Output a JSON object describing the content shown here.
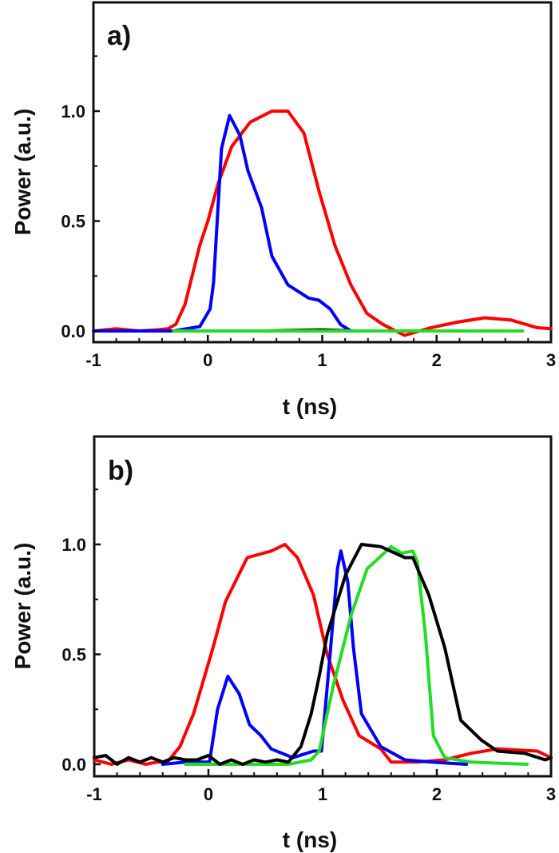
{
  "chart_data": [
    {
      "type": "line",
      "panel_label": "a)",
      "xlabel": "t (ns)",
      "ylabel": "Power (a.u.)",
      "xlim": [
        -1,
        3
      ],
      "ylim": [
        -0.05,
        1.5
      ],
      "xticks": [
        -1,
        0,
        1,
        2,
        3
      ],
      "xtick_labels": [
        "-1",
        "0",
        "1",
        "2",
        "3"
      ],
      "yticks": [
        0.0,
        0.5,
        1.0
      ],
      "ytick_labels": [
        "0.0",
        "0.5",
        "1.0"
      ],
      "grid": false,
      "series": [
        {
          "name": "black",
          "color": "#000000",
          "x": [
            -1,
            -0.5,
            0,
            0.5,
            1.0,
            1.3
          ],
          "y": [
            0.0,
            0.0,
            0.0,
            0.0,
            0.005,
            0.0
          ]
        },
        {
          "name": "red",
          "color": "#ff0000",
          "x": [
            -1,
            -0.8,
            -0.6,
            -0.45,
            -0.35,
            -0.28,
            -0.2,
            -0.07,
            0.0,
            0.09,
            0.21,
            0.37,
            0.56,
            0.7,
            0.84,
            0.97,
            1.11,
            1.25,
            1.39,
            1.53,
            1.72,
            1.95,
            2.18,
            2.42,
            2.65,
            2.88,
            3.0
          ],
          "y": [
            0.0,
            0.01,
            0.0,
            0.005,
            0.01,
            0.03,
            0.12,
            0.39,
            0.5,
            0.67,
            0.84,
            0.95,
            1.0,
            1.0,
            0.9,
            0.64,
            0.39,
            0.21,
            0.08,
            0.03,
            -0.02,
            0.015,
            0.04,
            0.06,
            0.05,
            0.015,
            0.01
          ]
        },
        {
          "name": "blue",
          "color": "#0000ff",
          "x": [
            -1,
            -0.6,
            -0.3,
            -0.07,
            0.02,
            0.05,
            0.12,
            0.19,
            0.28,
            0.35,
            0.47,
            0.56,
            0.7,
            0.88,
            0.97,
            1.07,
            1.16,
            1.25,
            1.6,
            2.0
          ],
          "y": [
            0.0,
            0.0,
            0.0,
            0.02,
            0.1,
            0.22,
            0.83,
            0.98,
            0.89,
            0.73,
            0.56,
            0.34,
            0.21,
            0.15,
            0.14,
            0.1,
            0.03,
            0.0,
            0.0,
            0.0
          ]
        },
        {
          "name": "green",
          "color": "#22dd22",
          "x": [
            -0.3,
            0.5,
            1.0,
            1.5,
            2.0,
            2.75
          ],
          "y": [
            0.0,
            0.0,
            0.0,
            0.0,
            0.0,
            0.0
          ]
        }
      ]
    },
    {
      "type": "line",
      "panel_label": "b)",
      "xlabel": "t (ns)",
      "ylabel": "Power (a.u.)",
      "xlim": [
        -1,
        3
      ],
      "ylim": [
        -0.05,
        1.5
      ],
      "xticks": [
        -1,
        0,
        1,
        2,
        3
      ],
      "xtick_labels": [
        "-1",
        "0",
        "1",
        "2",
        "3"
      ],
      "yticks": [
        0.0,
        0.5,
        1.0
      ],
      "ytick_labels": [
        "0.0",
        "0.5",
        "1.0"
      ],
      "grid": false,
      "series": [
        {
          "name": "red",
          "color": "#ff0000",
          "x": [
            -1,
            -0.85,
            -0.7,
            -0.55,
            -0.45,
            -0.36,
            -0.25,
            -0.13,
            0.04,
            0.15,
            0.34,
            0.55,
            0.67,
            0.78,
            0.92,
            1.04,
            1.18,
            1.32,
            1.51,
            1.6,
            1.83,
            2.07,
            2.3,
            2.53,
            2.88,
            3.0
          ],
          "y": [
            0.02,
            0.0,
            0.02,
            0.0,
            0.01,
            0.01,
            0.08,
            0.23,
            0.53,
            0.74,
            0.94,
            0.97,
            1.0,
            0.94,
            0.77,
            0.5,
            0.29,
            0.13,
            0.07,
            0.01,
            0.01,
            0.02,
            0.05,
            0.07,
            0.06,
            0.03
          ]
        },
        {
          "name": "blue",
          "color": "#0000ff",
          "x": [
            -0.4,
            -0.2,
            0.01,
            0.08,
            0.17,
            0.27,
            0.36,
            0.46,
            0.55,
            0.74,
            0.92,
            0.99,
            1.06,
            1.13,
            1.16,
            1.22,
            1.27,
            1.34,
            1.51,
            1.72,
            1.95,
            2.26
          ],
          "y": [
            0.0,
            0.01,
            0.01,
            0.25,
            0.4,
            0.32,
            0.18,
            0.13,
            0.07,
            0.03,
            0.06,
            0.06,
            0.47,
            0.89,
            0.97,
            0.83,
            0.53,
            0.23,
            0.08,
            0.02,
            0.01,
            0.0
          ]
        },
        {
          "name": "green",
          "color": "#22dd22",
          "x": [
            -0.2,
            0.3,
            0.7,
            0.9,
            0.97,
            1.09,
            1.25,
            1.39,
            1.6,
            1.69,
            1.79,
            1.83,
            1.9,
            1.97,
            2.07,
            2.3,
            2.79
          ],
          "y": [
            0.0,
            0.0,
            0.0,
            0.02,
            0.06,
            0.35,
            0.68,
            0.89,
            0.99,
            0.96,
            0.97,
            0.92,
            0.59,
            0.13,
            0.03,
            0.01,
            0.0
          ]
        },
        {
          "name": "black",
          "color": "#000000",
          "x": [
            -1,
            -0.9,
            -0.8,
            -0.7,
            -0.6,
            -0.5,
            -0.4,
            -0.3,
            -0.2,
            -0.1,
            0.0,
            0.1,
            0.2,
            0.3,
            0.4,
            0.5,
            0.6,
            0.7,
            0.81,
            0.9,
            0.97,
            1.04,
            1.2,
            1.34,
            1.51,
            1.72,
            1.79,
            1.93,
            2.07,
            2.21,
            2.39,
            2.53,
            2.77,
            2.95,
            3.0
          ],
          "y": [
            0.03,
            0.04,
            0.0,
            0.03,
            0.01,
            0.03,
            0.01,
            0.03,
            0.02,
            0.02,
            0.04,
            0.0,
            0.02,
            0.0,
            0.02,
            0.01,
            0.02,
            0.01,
            0.08,
            0.23,
            0.4,
            0.59,
            0.86,
            1.0,
            0.99,
            0.94,
            0.94,
            0.77,
            0.53,
            0.2,
            0.11,
            0.06,
            0.05,
            0.02,
            0.03
          ]
        }
      ]
    }
  ]
}
